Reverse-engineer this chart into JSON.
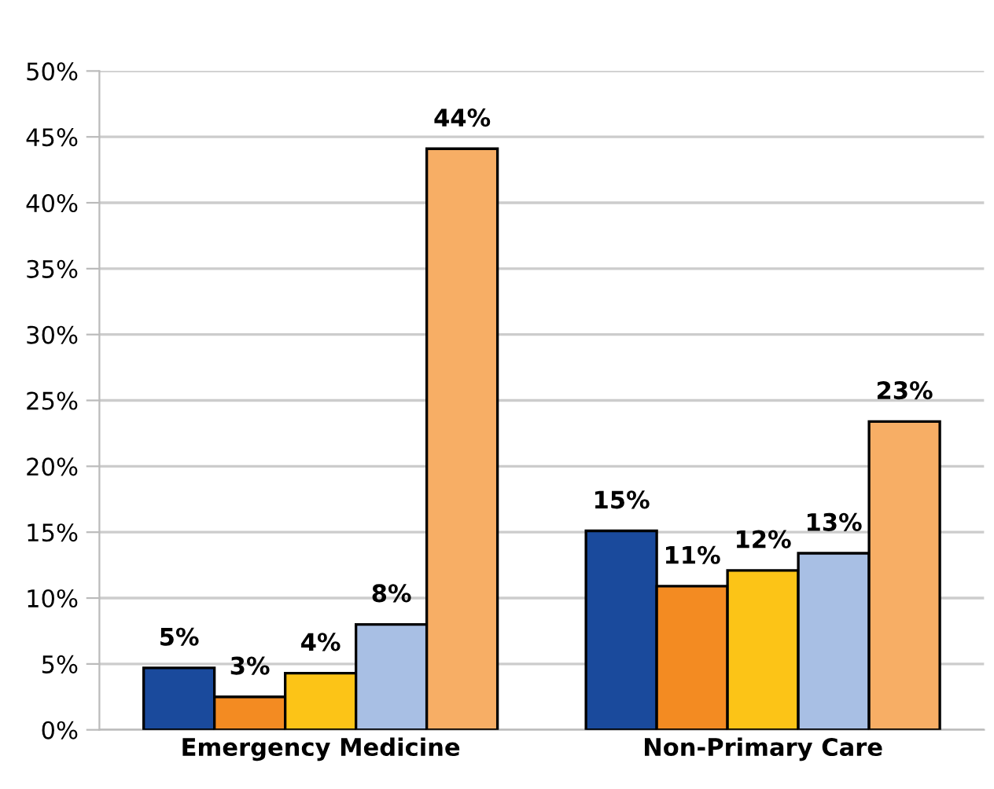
{
  "chart_data": {
    "type": "bar",
    "categories": [
      "Emergency Medicine",
      "Non-Primary Care"
    ],
    "series": [
      {
        "color": "#1a4a9c",
        "values": [
          4.7,
          15.1
        ],
        "value_labels": [
          "5%",
          "15%"
        ]
      },
      {
        "color": "#f38b22",
        "values": [
          2.5,
          10.9
        ],
        "value_labels": [
          "3%",
          "11%"
        ]
      },
      {
        "color": "#fcc417",
        "values": [
          4.3,
          12.1
        ],
        "value_labels": [
          "4%",
          "12%"
        ]
      },
      {
        "color": "#a8bfe4",
        "values": [
          8.0,
          13.4
        ],
        "value_labels": [
          "8%",
          "13%"
        ]
      },
      {
        "color": "#f7ae65",
        "values": [
          44.1,
          23.4
        ],
        "value_labels": [
          "44%",
          "23%"
        ]
      }
    ],
    "ylim": [
      0,
      50
    ],
    "yticks": [
      {
        "value": 0,
        "label": "0%"
      },
      {
        "value": 5,
        "label": "5%"
      },
      {
        "value": 10,
        "label": "10%"
      },
      {
        "value": 15,
        "label": "15%"
      },
      {
        "value": 20,
        "label": "20%"
      },
      {
        "value": 25,
        "label": "25%"
      },
      {
        "value": 30,
        "label": "30%"
      },
      {
        "value": 35,
        "label": "35%"
      },
      {
        "value": 40,
        "label": "40%"
      },
      {
        "value": 45,
        "label": "45%"
      },
      {
        "value": 50,
        "label": "50%"
      }
    ],
    "grid": "y",
    "legend": false
  }
}
